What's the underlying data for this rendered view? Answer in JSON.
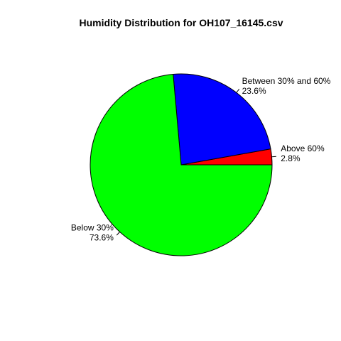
{
  "chart_data": {
    "type": "pie",
    "title": "Humidity Distribution for OH107_16145.csv",
    "slices": [
      {
        "label": "Above 60%",
        "percent_label": "2.8%",
        "value": 2.8,
        "color": "#ff0000"
      },
      {
        "label": "Between 30% and 60%",
        "percent_label": "23.6%",
        "value": 23.6,
        "color": "#0000ff"
      },
      {
        "label": "Below 30%",
        "percent_label": "73.6%",
        "value": 73.6,
        "color": "#00ff00"
      }
    ],
    "legend": "none",
    "direction": "counterclockwise",
    "start_angle": "east"
  }
}
